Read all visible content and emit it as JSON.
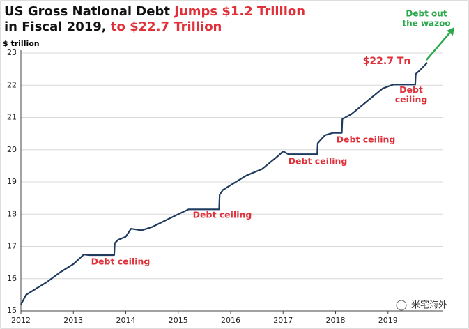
{
  "chart_data": {
    "type": "line",
    "title_parts": [
      {
        "text": "US Gross National Debt ",
        "color": "#111111"
      },
      {
        "text": "Jumps $1.2 Trillion",
        "color": "#e0303a"
      },
      {
        "text": "in Fiscal 2019, ",
        "color": "#111111"
      },
      {
        "text": "to $22.7 Trillion",
        "color": "#e0303a"
      }
    ],
    "y_label": "$ trillion",
    "series": [
      {
        "name": "US Gross National Debt",
        "color": "#1f3a5f",
        "x": [
          2012.0,
          2012.1,
          2012.3,
          2012.5,
          2012.75,
          2013.0,
          2013.2,
          2013.3,
          2013.78,
          2013.79,
          2013.85,
          2014.0,
          2014.1,
          2014.3,
          2014.5,
          2014.75,
          2015.0,
          2015.2,
          2015.78,
          2015.79,
          2015.85,
          2016.0,
          2016.3,
          2016.6,
          2016.9,
          2017.0,
          2017.1,
          2017.65,
          2017.66,
          2017.8,
          2017.95,
          2018.12,
          2018.13,
          2018.3,
          2018.6,
          2018.9,
          2019.1,
          2019.52,
          2019.53,
          2019.6,
          2019.75
        ],
        "values": [
          15.2,
          15.5,
          15.7,
          15.9,
          16.2,
          16.45,
          16.75,
          16.73,
          16.73,
          17.1,
          17.2,
          17.3,
          17.55,
          17.5,
          17.6,
          17.8,
          18.0,
          18.15,
          18.15,
          18.6,
          18.75,
          18.9,
          19.2,
          19.4,
          19.8,
          19.95,
          19.86,
          19.86,
          20.2,
          20.45,
          20.52,
          20.52,
          20.95,
          21.1,
          21.5,
          21.9,
          22.02,
          22.02,
          22.35,
          22.45,
          22.7
        ]
      }
    ],
    "xlim": [
      2012,
      2020
    ],
    "xticks": [
      2012,
      2013,
      2014,
      2015,
      2016,
      2017,
      2018,
      2019
    ],
    "ylim": [
      15,
      23
    ],
    "yticks": [
      15,
      16,
      17,
      18,
      19,
      20,
      21,
      22,
      23
    ],
    "grid": true,
    "annotations": [
      "Debt ceiling",
      "Debt ceiling",
      "Debt ceiling",
      "Debt ceiling",
      "Debt ceiling",
      "$22.7 Tn"
    ],
    "callout": {
      "lines": [
        "Debt out",
        "the wazoo"
      ],
      "color": "#2aa84a"
    },
    "watermark": "米宅海外"
  }
}
